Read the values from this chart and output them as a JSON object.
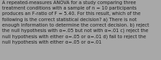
{
  "lines": [
    "A repeated-measures ANOVA for a study comparing three",
    "treatment conditions with a sample of n = 10 participants",
    "produces an F-ratio of F = 5.40. For this result, which of the",
    "following is the correct statistical decision? a) There is not",
    "enough information to determine the correct decision. b) reject",
    "the null hypothesis with α=.05 but not with α=.01 c) reject the",
    "null hypothesis with either α=.05 or α=.01 d) fail to reject the",
    "null hypothesis with either α=.05 or α=.01"
  ],
  "background_color": "#a8a8a8",
  "text_color": "#1a1a1a",
  "font_size": 4.85,
  "fig_width": 2.35,
  "fig_height": 0.88,
  "linespacing": 1.38
}
